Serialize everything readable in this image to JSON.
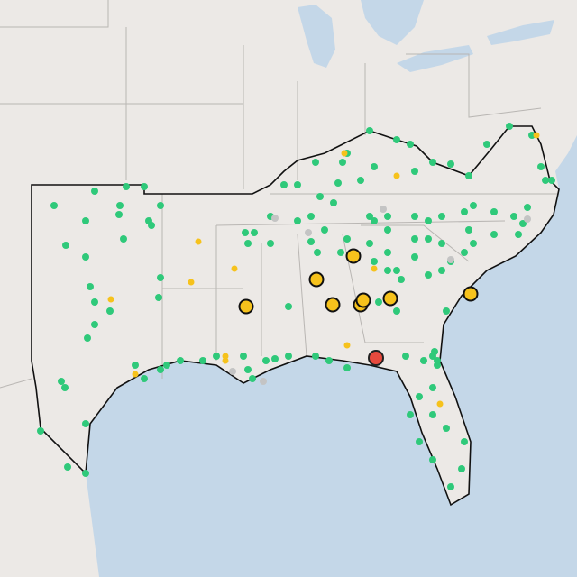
{
  "map": {}
}
